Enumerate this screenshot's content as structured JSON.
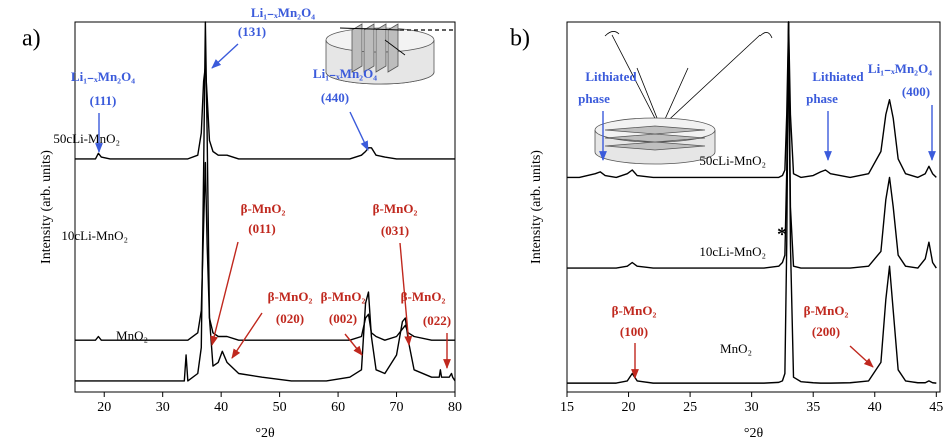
{
  "chart_data": [
    {
      "type": "line",
      "panel_label": "a)",
      "x_label": "°2θ",
      "y_label": "Intensity (arb. units)",
      "xlim": [
        15,
        80
      ],
      "ylim": [
        0,
        100
      ],
      "xticks": [
        20,
        30,
        40,
        50,
        60,
        70,
        80
      ],
      "x": [
        15,
        17,
        18.5,
        19,
        19.5,
        21,
        25,
        30,
        33.7,
        34,
        34.3,
        36,
        36.6,
        37,
        37.3,
        37.6,
        38,
        38.6,
        39.5,
        40.2,
        41,
        43,
        47,
        52,
        58,
        62,
        64,
        64.7,
        65.2,
        65.7,
        66.5,
        68,
        70,
        71,
        71.5,
        72,
        73,
        76,
        77.3,
        77.5,
        77.7,
        79,
        79.4,
        79.6,
        80
      ],
      "series": [
        {
          "name": "50cLi-MnO₂",
          "color": "#000000",
          "values": [
            63,
            63,
            63,
            64.5,
            63.5,
            63,
            63,
            63,
            63,
            63,
            63,
            64,
            70,
            84,
            88,
            80,
            68,
            65,
            64,
            64,
            64,
            63,
            63,
            63,
            63,
            63,
            64,
            65,
            66,
            66,
            64,
            63.5,
            63,
            63,
            63,
            63,
            63,
            63,
            63,
            63,
            63,
            63,
            63,
            63,
            63
          ]
        },
        {
          "name": "10cLi-MnO₂",
          "color": "#000000",
          "values": [
            14,
            14,
            14,
            15,
            14,
            14,
            14,
            14,
            14,
            14,
            14,
            16,
            22,
            45,
            62,
            40,
            20,
            16,
            15,
            15,
            15,
            14,
            14,
            14,
            14,
            14,
            15,
            20,
            21,
            16,
            15,
            14,
            15,
            17,
            18,
            16,
            15,
            14,
            14,
            14,
            14,
            14,
            14,
            14,
            14
          ]
        },
        {
          "name": "MnO₂",
          "color": "#000000",
          "values": [
            3,
            3,
            3,
            3,
            3,
            3,
            3,
            3,
            3,
            10,
            3,
            5,
            12,
            60,
            100,
            70,
            20,
            7,
            8,
            11,
            8,
            5,
            4,
            3,
            3,
            4,
            6,
            24,
            27,
            15,
            6,
            5,
            10,
            19,
            20,
            14,
            6,
            4,
            4,
            6,
            4,
            4,
            5,
            4,
            3
          ]
        }
      ],
      "annotations": [
        {
          "lines": [
            "Li₁₋ₓMn₂O₄",
            "(111)"
          ],
          "color": "#3b5bdb"
        },
        {
          "lines": [
            "Li₁₋ₓMn₂O₄",
            "(131)"
          ],
          "color": "#3b5bdb"
        },
        {
          "lines": [
            "Li₁₋ₓMn₂O₄",
            "(440)"
          ],
          "color": "#3b5bdb"
        },
        {
          "lines": [
            "β-MnO₂",
            "(011)"
          ],
          "color": "#c0281e"
        },
        {
          "lines": [
            "β-MnO₂",
            "(020)"
          ],
          "color": "#c0281e"
        },
        {
          "lines": [
            "β-MnO₂",
            "(002)"
          ],
          "color": "#c0281e"
        },
        {
          "lines": [
            "β-MnO₂",
            "(031)"
          ],
          "color": "#c0281e"
        },
        {
          "lines": [
            "β-MnO₂",
            "(022)"
          ],
          "color": "#c0281e"
        }
      ]
    },
    {
      "type": "line",
      "panel_label": "b)",
      "x_label": "°2θ",
      "y_label": "Intensity (arb. units)",
      "xlim": [
        15,
        45.3
      ],
      "ylim": [
        0,
        100
      ],
      "xticks": [
        15,
        20,
        25,
        30,
        35,
        40,
        45
      ],
      "x": [
        15,
        16,
        17.3,
        17.7,
        18.1,
        19,
        19.9,
        20.3,
        20.7,
        22,
        25,
        28,
        31,
        32.2,
        32.5,
        32.7,
        32.85,
        33,
        33.15,
        33.4,
        34,
        35,
        35.6,
        36,
        36.4,
        38,
        39.5,
        40.5,
        40.9,
        41.2,
        41.5,
        41.9,
        42.5,
        43.5,
        44.1,
        44.4,
        44.7,
        45
      ],
      "series": [
        {
          "name": "50cLi-MnO₂",
          "color": "#000000",
          "values": [
            58,
            58,
            59,
            59.5,
            58.5,
            58,
            59,
            60,
            58.5,
            58,
            58,
            58,
            58,
            58,
            58.5,
            60,
            75,
            100,
            75,
            59,
            58,
            58.5,
            59.5,
            60,
            59,
            58,
            59,
            65,
            75,
            79,
            74,
            63,
            59,
            58,
            59,
            61,
            59,
            58
          ]
        },
        {
          "name": "10cLi-MnO₂",
          "color": "#000000",
          "values": [
            33.5,
            33.5,
            33.5,
            33.5,
            33.5,
            33.5,
            34,
            35,
            34,
            33.5,
            33.5,
            33.5,
            33.5,
            34,
            35,
            37,
            60,
            100,
            50,
            34,
            33.5,
            33.5,
            33.5,
            33.5,
            33.5,
            33.5,
            34,
            38,
            52,
            58,
            50,
            37,
            34,
            33.5,
            36,
            40.5,
            35,
            33.5
          ]
        },
        {
          "name": "MnO₂",
          "color": "#000000",
          "values": [
            2.4,
            2.4,
            2.4,
            2.4,
            2.4,
            2.4,
            3,
            5,
            3,
            2.4,
            2.4,
            2.4,
            2.4,
            2.6,
            3,
            5,
            40,
            100,
            40,
            4,
            2.8,
            2.5,
            2.4,
            2.4,
            2.4,
            2.5,
            3,
            8,
            25,
            34,
            22,
            6,
            3,
            2.5,
            2.5,
            3,
            2.5,
            2.4
          ]
        }
      ],
      "annotations": [
        {
          "lines": [
            "Lithiated",
            "phase"
          ],
          "color": "#3b5bdb"
        },
        {
          "lines": [
            "Lithiated",
            "phase"
          ],
          "color": "#3b5bdb"
        },
        {
          "lines": [
            "Li₁₋ₓMn₂O₄",
            "(400)"
          ],
          "color": "#3b5bdb"
        },
        {
          "lines": [
            "β-MnO₂",
            "(100)"
          ],
          "color": "#c0281e"
        },
        {
          "lines": [
            "β-MnO₂",
            "(200)"
          ],
          "color": "#c0281e"
        },
        {
          "lines": [
            "*"
          ],
          "color": "#000000"
        }
      ]
    }
  ]
}
